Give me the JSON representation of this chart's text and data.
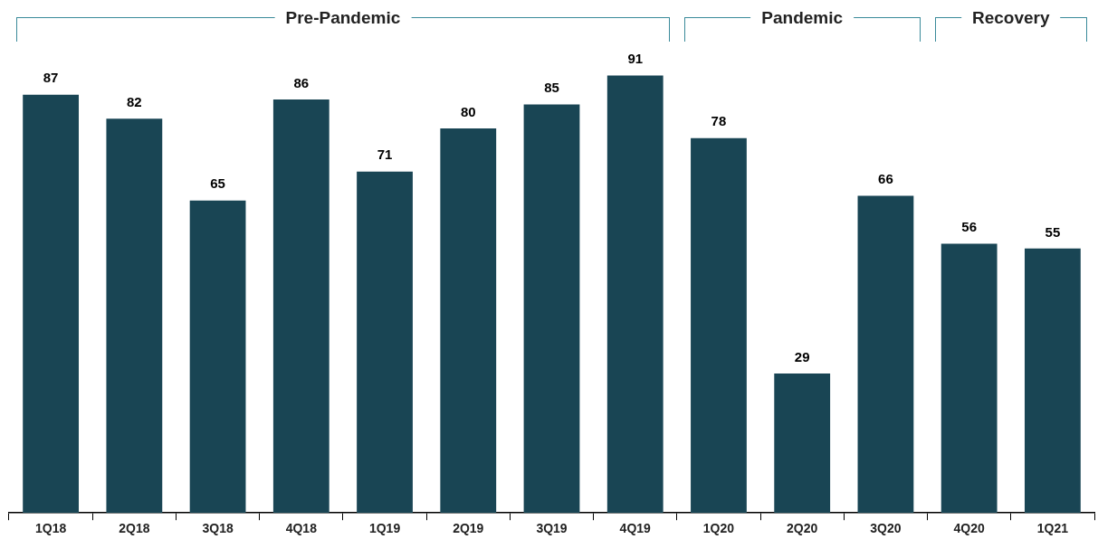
{
  "chart_data": {
    "type": "bar",
    "categories": [
      "1Q18",
      "2Q18",
      "3Q18",
      "4Q18",
      "1Q19",
      "2Q19",
      "3Q19",
      "4Q19",
      "1Q20",
      "2Q20",
      "3Q20",
      "4Q20",
      "1Q21"
    ],
    "values": [
      87,
      82,
      65,
      86,
      71,
      80,
      85,
      91,
      78,
      29,
      66,
      56,
      55
    ],
    "color": "#194554",
    "data_labels": true,
    "annotations": [
      "Pre-Pandemic",
      "Pandemic",
      "Recovery"
    ]
  }
}
